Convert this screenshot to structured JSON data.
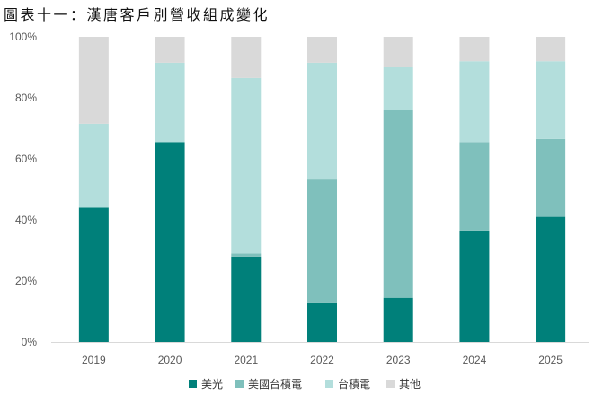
{
  "chart_data": {
    "type": "bar",
    "stacked": true,
    "title": "圖表十一：漢唐客戶別營收組成變化",
    "categories": [
      "2019",
      "2020",
      "2021",
      "2022",
      "2023",
      "2024",
      "2025"
    ],
    "series": [
      {
        "name": "美光",
        "color": "#00807A",
        "values": [
          44,
          65.5,
          28,
          13,
          14.5,
          36.5,
          41
        ]
      },
      {
        "name": "美國台積電",
        "color": "#7FC0BC",
        "values": [
          0,
          0,
          1,
          40.5,
          61.5,
          29,
          25.5
        ]
      },
      {
        "name": "台積電",
        "color": "#B3DEDC",
        "values": [
          27.5,
          26,
          57.5,
          38,
          14,
          26.5,
          25.5
        ]
      },
      {
        "name": "其他",
        "color": "#D9D9D9",
        "values": [
          28.5,
          8.5,
          13.5,
          8.5,
          10,
          8,
          8
        ]
      }
    ],
    "ylim": [
      0,
      100
    ],
    "y_ticks": [
      "0%",
      "20%",
      "40%",
      "60%",
      "80%",
      "100%"
    ],
    "xlabel": "",
    "ylabel": "",
    "legend_position": "bottom",
    "grid": false
  }
}
